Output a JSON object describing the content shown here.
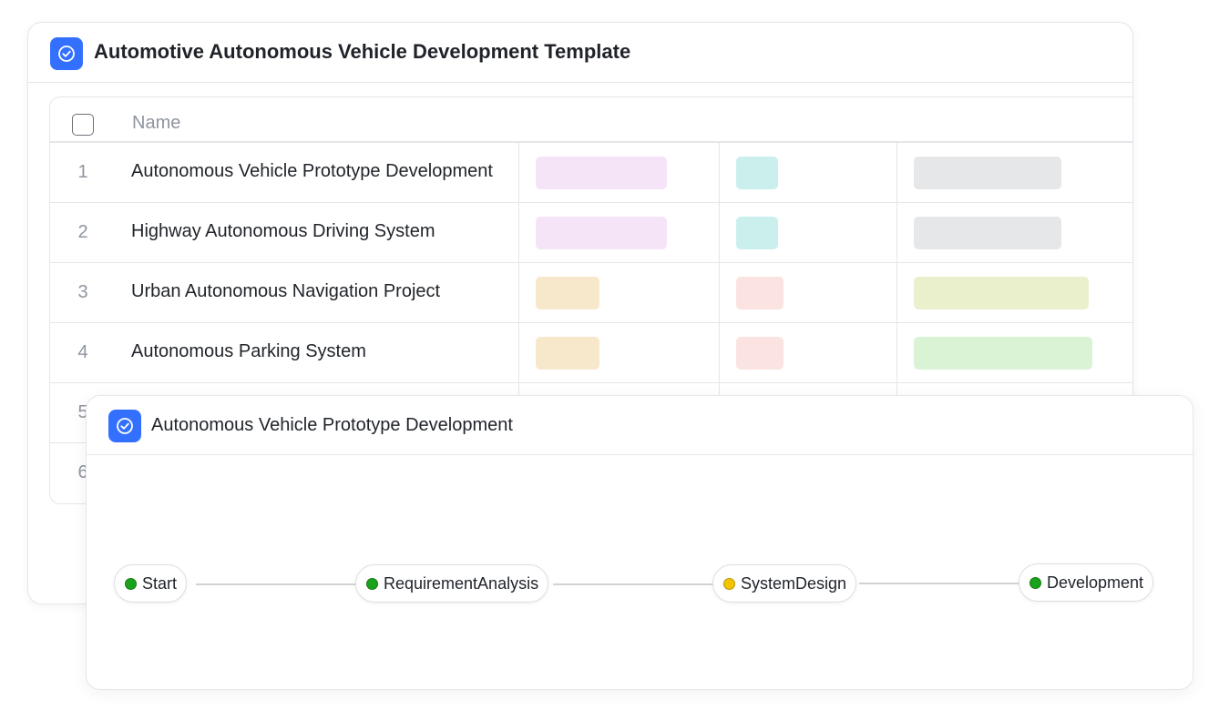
{
  "template": {
    "title": "Automotive Autonomous Vehicle Development Template",
    "table": {
      "header_name": "Name",
      "rows": [
        {
          "num": "1",
          "name": "Autonomous Vehicle Prototype Development",
          "tags": [
            "#f5e4f7",
            "#caefed",
            "#e6e7e9"
          ]
        },
        {
          "num": "2",
          "name": "Highway Autonomous Driving System",
          "tags": [
            "#f5e4f7",
            "#caefed",
            "#e6e7e9"
          ]
        },
        {
          "num": "3",
          "name": "Urban Autonomous Navigation Project",
          "tags": [
            "#f8e8cb",
            "#fbe3e1",
            "#eaf0cc"
          ]
        },
        {
          "num": "4",
          "name": "Autonomous Parking System",
          "tags": [
            "#f8e8cb",
            "#fbe3e1",
            "#d9f3d4"
          ]
        },
        {
          "num": "5",
          "name": ""
        },
        {
          "num": "6",
          "name": ""
        }
      ]
    }
  },
  "flow_panel": {
    "title": "Autonomous Vehicle Prototype Development",
    "nodes": [
      {
        "label": "Start",
        "status_color": "#1aa31a"
      },
      {
        "label": "RequirementAnalysis",
        "status_color": "#1aa31a"
      },
      {
        "label": "SystemDesign",
        "status_color": "#f5c400"
      },
      {
        "label": "Development",
        "status_color": "#1aa31a"
      }
    ]
  },
  "colors": {
    "accent": "#3370ff",
    "border": "#e4e6ea"
  },
  "icons": {
    "app": "check-circle-icon"
  }
}
